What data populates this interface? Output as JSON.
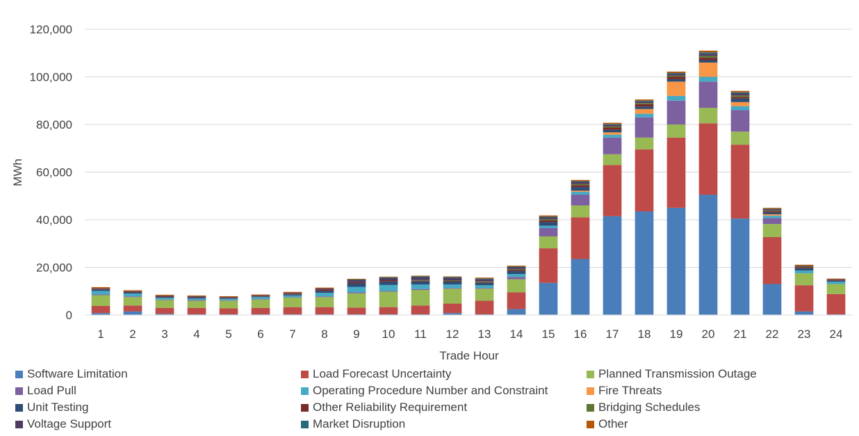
{
  "chart_data": {
    "type": "bar",
    "stacked": true,
    "title": "",
    "xlabel": "Trade Hour",
    "ylabel": "MWh",
    "ylim": [
      0,
      120000
    ],
    "yticks": [
      "0",
      "20,000",
      "40,000",
      "60,000",
      "80,000",
      "100,000",
      "120,000"
    ],
    "grid": true,
    "legend_position": "bottom",
    "categories": [
      "1",
      "2",
      "3",
      "4",
      "5",
      "6",
      "7",
      "8",
      "9",
      "10",
      "11",
      "12",
      "13",
      "14",
      "15",
      "16",
      "17",
      "18",
      "19",
      "20",
      "21",
      "22",
      "23",
      "24"
    ],
    "series": [
      {
        "name": "Software Limitation",
        "color": "#4a7ebb",
        "values": [
          800,
          1500,
          500,
          300,
          300,
          300,
          300,
          300,
          300,
          300,
          300,
          800,
          300,
          2500,
          13500,
          23500,
          41500,
          43500,
          45000,
          50500,
          40500,
          13000,
          1500,
          300
        ]
      },
      {
        "name": "Load Forecast Uncertainty",
        "color": "#be4b48",
        "values": [
          3000,
          2500,
          2500,
          2700,
          2500,
          2700,
          3000,
          3000,
          2800,
          3000,
          3700,
          4000,
          5700,
          7000,
          14500,
          17500,
          21500,
          26000,
          29500,
          30000,
          31000,
          19700,
          11000,
          8500
        ]
      },
      {
        "name": "Planned Transmission Outage",
        "color": "#98b954",
        "values": [
          4500,
          3500,
          3300,
          3000,
          3200,
          3500,
          4000,
          4200,
          6000,
          6500,
          6500,
          6200,
          5000,
          5500,
          5000,
          5000,
          4500,
          5000,
          5500,
          6500,
          5500,
          5500,
          5000,
          4200
        ]
      },
      {
        "name": "Load Pull",
        "color": "#7d60a0",
        "values": [
          300,
          300,
          200,
          300,
          200,
          200,
          200,
          300,
          400,
          300,
          400,
          300,
          300,
          1000,
          3500,
          4500,
          7000,
          8500,
          10000,
          11000,
          9000,
          2500,
          0,
          0
        ]
      },
      {
        "name": "Operating Procedure Number and Constraint",
        "color": "#46aac5",
        "values": [
          1500,
          1200,
          700,
          600,
          600,
          800,
          700,
          1500,
          2300,
          2500,
          1900,
          1500,
          1200,
          1200,
          1000,
          1200,
          1200,
          1500,
          2000,
          2000,
          1700,
          1000,
          1200,
          1000
        ]
      },
      {
        "name": "Fire Threats",
        "color": "#f79646",
        "values": [
          0,
          0,
          0,
          0,
          0,
          0,
          0,
          0,
          0,
          0,
          0,
          0,
          0,
          0,
          0,
          500,
          1000,
          2000,
          6000,
          6000,
          1700,
          600,
          0,
          0
        ]
      },
      {
        "name": "Unit Testing",
        "color": "#2c4d75",
        "values": [
          600,
          500,
          400,
          500,
          300,
          300,
          500,
          800,
          1500,
          1500,
          1300,
          1200,
          1000,
          1300,
          1500,
          1500,
          1000,
          1000,
          1000,
          1000,
          1500,
          800,
          900,
          400
        ]
      },
      {
        "name": "Other Reliability Requirement",
        "color": "#772c2a",
        "values": [
          300,
          300,
          300,
          300,
          300,
          300,
          300,
          500,
          500,
          500,
          300,
          300,
          300,
          500,
          700,
          800,
          1000,
          1000,
          1000,
          1000,
          700,
          500,
          400,
          300
        ]
      },
      {
        "name": "Bridging Schedules",
        "color": "#5f7530",
        "values": [
          0,
          0,
          0,
          0,
          0,
          0,
          0,
          0,
          0,
          0,
          300,
          300,
          300,
          300,
          500,
          500,
          500,
          500,
          500,
          800,
          600,
          300,
          300,
          0
        ]
      },
      {
        "name": "Voltage Support",
        "color": "#4d3b62",
        "values": [
          200,
          200,
          200,
          200,
          200,
          200,
          300,
          500,
          800,
          900,
          1200,
          1000,
          900,
          700,
          800,
          900,
          700,
          600,
          700,
          900,
          800,
          500,
          400,
          300
        ]
      },
      {
        "name": "Market Disruption",
        "color": "#276a7c",
        "values": [
          0,
          0,
          0,
          0,
          0,
          0,
          0,
          0,
          300,
          300,
          300,
          300,
          300,
          300,
          300,
          300,
          300,
          400,
          400,
          600,
          500,
          200,
          0,
          0
        ]
      },
      {
        "name": "Other",
        "color": "#b65708",
        "values": [
          500,
          400,
          400,
          300,
          300,
          300,
          400,
          400,
          300,
          300,
          300,
          300,
          400,
          400,
          500,
          500,
          500,
          500,
          600,
          700,
          600,
          400,
          400,
          300
        ]
      }
    ]
  }
}
